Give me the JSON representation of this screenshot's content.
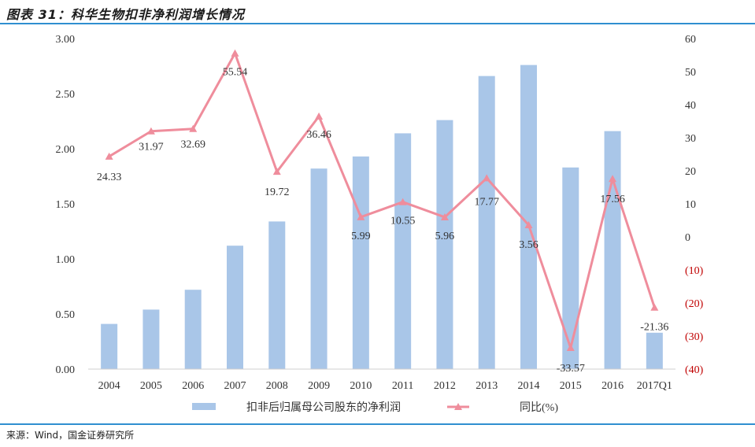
{
  "header": {
    "title": "图表 31：科华生物扣非净利润增长情况"
  },
  "footer": {
    "source": "来源：Wind，国金证券研究所"
  },
  "chart_data": {
    "type": "bar",
    "categories": [
      "2004",
      "2005",
      "2006",
      "2007",
      "2008",
      "2009",
      "2010",
      "2011",
      "2012",
      "2013",
      "2014",
      "2015",
      "2016",
      "2017Q1"
    ],
    "series": [
      {
        "name": "扣非后归属母公司股东的净利润",
        "type": "bar",
        "axis": "left",
        "values": [
          0.41,
          0.54,
          0.72,
          1.12,
          1.34,
          1.82,
          1.93,
          2.14,
          2.26,
          2.66,
          2.76,
          1.83,
          2.16,
          0.33
        ]
      },
      {
        "name": "同比(%)",
        "type": "line",
        "axis": "right",
        "values": [
          24.33,
          31.97,
          32.69,
          55.54,
          19.72,
          36.46,
          5.99,
          10.55,
          5.96,
          17.77,
          3.56,
          -33.57,
          17.56,
          -21.36
        ],
        "labels": [
          "24.33",
          "31.97",
          "32.69",
          "55.54",
          "19.72",
          "36.46",
          "5.99",
          "10.55",
          "5.96",
          "17.77",
          "3.56",
          "-33.57",
          "17.56",
          "-21.36"
        ]
      }
    ],
    "y_left": {
      "ylim": [
        0,
        3.0
      ],
      "ticks": [
        "0.00",
        "0.50",
        "1.00",
        "1.50",
        "2.00",
        "2.50",
        "3.00"
      ]
    },
    "y_right": {
      "ylim": [
        -40,
        60
      ],
      "ticks": [
        "(40)",
        "(30)",
        "(20)",
        "(10)",
        "0",
        "10",
        "20",
        "30",
        "40",
        "50",
        "60"
      ]
    },
    "colors": {
      "bar": "#a9c6e8",
      "line": "#ef8d9c",
      "negative_tick": "#c00000",
      "axis_text": "#333333"
    },
    "legend_position": "bottom"
  }
}
